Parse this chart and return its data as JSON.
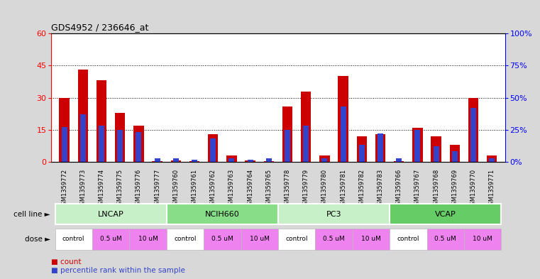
{
  "title": "GDS4952 / 236646_at",
  "samples": [
    "GSM1359772",
    "GSM1359773",
    "GSM1359774",
    "GSM1359775",
    "GSM1359776",
    "GSM1359777",
    "GSM1359760",
    "GSM1359761",
    "GSM1359762",
    "GSM1359763",
    "GSM1359764",
    "GSM1359765",
    "GSM1359778",
    "GSM1359779",
    "GSM1359780",
    "GSM1359781",
    "GSM1359782",
    "GSM1359783",
    "GSM1359766",
    "GSM1359767",
    "GSM1359768",
    "GSM1359769",
    "GSM1359770",
    "GSM1359771"
  ],
  "red_values": [
    30,
    43,
    38,
    23,
    17,
    0.3,
    0.5,
    0.3,
    13,
    3,
    0.5,
    0.3,
    26,
    33,
    3,
    40,
    12,
    13,
    0.3,
    16,
    12,
    8,
    30,
    3
  ],
  "blue_values_pct": [
    27,
    37,
    28,
    25,
    23,
    2.5,
    2.5,
    1.7,
    18,
    3,
    1.7,
    2.5,
    25,
    28,
    3,
    43,
    13,
    22,
    2.5,
    25,
    12,
    8,
    42,
    3
  ],
  "cell_lines": [
    "LNCAP",
    "NCIH660",
    "PC3",
    "VCAP"
  ],
  "cell_line_spans": [
    [
      0,
      5
    ],
    [
      6,
      11
    ],
    [
      12,
      17
    ],
    [
      18,
      23
    ]
  ],
  "cell_line_colors": [
    "#c8f0c8",
    "#88dd88",
    "#c8f0c8",
    "#66cc66"
  ],
  "dose_labels": [
    "control",
    "0.5 uM",
    "10 uM"
  ],
  "dose_colors": [
    "#ffffff",
    "#ee82ee",
    "#ee82ee"
  ],
  "red_color": "#cc0000",
  "blue_color": "#3344cc",
  "background_color": "#d8d8d8",
  "plot_bg": "#ffffff",
  "bar_bg_color": "#d0d0d0",
  "ylim_left": [
    0,
    60
  ],
  "ylim_right": [
    0,
    100
  ],
  "yticks_left": [
    0,
    15,
    30,
    45,
    60
  ],
  "yticks_right": [
    0,
    25,
    50,
    75,
    100
  ],
  "ytick_labels_right": [
    "0%",
    "25%",
    "50%",
    "75%",
    "100%"
  ],
  "bar_width": 0.55,
  "blue_bar_width": 0.3
}
